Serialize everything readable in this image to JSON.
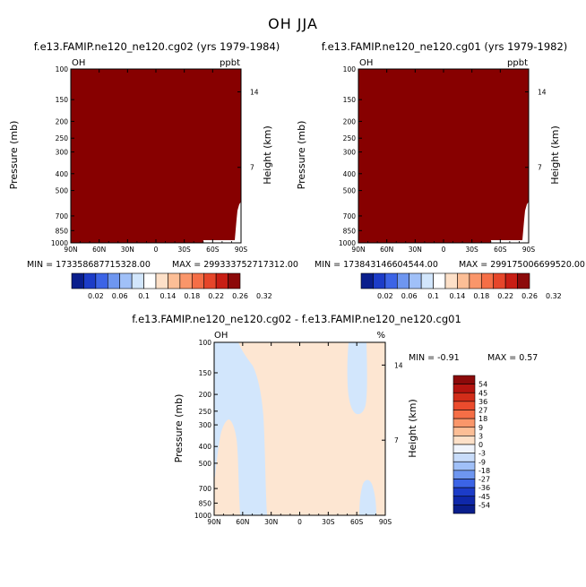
{
  "figure_title": "OH JJA",
  "chart_data": [
    {
      "type": "heatmap",
      "title": "f.e13.FAMIP.ne120_ne120.cg02 (yrs 1979-1984)",
      "variable": "OH",
      "units": "ppbt",
      "ylabel": "Pressure (mb)",
      "y2label": "Height (km)",
      "x_ticks": [
        "90N",
        "60N",
        "30N",
        "0",
        "30S",
        "60S",
        "90S"
      ],
      "y_ticks": [
        "100",
        "150",
        "200",
        "250",
        "300",
        "400",
        "500",
        "700",
        "850",
        "1000"
      ],
      "y2_ticks": [
        "14",
        "7"
      ],
      "ylim": [
        1000,
        100
      ],
      "min_label": "MIN = 173358687715328.00",
      "max_label": "MAX = 299333752717312.00",
      "colorbar_labels": [
        "0.02",
        "0.06",
        "0.1",
        "0.14",
        "0.18",
        "0.22",
        "0.26",
        "0.32"
      ],
      "colorbar_colors": [
        "#0a1e8c",
        "#1c3cc8",
        "#3c64e6",
        "#6e96f0",
        "#a0c0f8",
        "#d2e6fc",
        "#ffffff",
        "#fde0c8",
        "#fcbe96",
        "#fa966a",
        "#f56e46",
        "#e6462a",
        "#c81e14",
        "#8c0a0a"
      ],
      "fill_color": "#870000",
      "note": ""
    },
    {
      "type": "heatmap",
      "title": "f.e13.FAMIP.ne120_ne120.cg01 (yrs 1979-1982)",
      "variable": "OH",
      "units": "ppbt",
      "ylabel": "Pressure (mb)",
      "y2label": "Height (km)",
      "x_ticks": [
        "90N",
        "60N",
        "30N",
        "0",
        "30S",
        "60S",
        "90S"
      ],
      "y_ticks": [
        "100",
        "150",
        "200",
        "250",
        "300",
        "400",
        "500",
        "700",
        "850",
        "1000"
      ],
      "y2_ticks": [
        "14",
        "7"
      ],
      "ylim": [
        1000,
        100
      ],
      "min_label": "MIN = 173843146604544.00",
      "max_label": "MAX = 299175006699520.00",
      "colorbar_labels": [
        "0.02",
        "0.06",
        "0.1",
        "0.14",
        "0.18",
        "0.22",
        "0.26",
        "0.32"
      ],
      "colorbar_colors": [
        "#0a1e8c",
        "#1c3cc8",
        "#3c64e6",
        "#6e96f0",
        "#a0c0f8",
        "#d2e6fc",
        "#ffffff",
        "#fde0c8",
        "#fcbe96",
        "#fa966a",
        "#f56e46",
        "#e6462a",
        "#c81e14",
        "#8c0a0a"
      ],
      "fill_color": "#870000"
    },
    {
      "type": "heatmap",
      "title": "f.e13.FAMIP.ne120_ne120.cg02 - f.e13.FAMIP.ne120_ne120.cg01",
      "variable": "OH",
      "units": "%",
      "ylabel": "Pressure (mb)",
      "y2label": "Height (km)",
      "x_ticks": [
        "90N",
        "60N",
        "30N",
        "0",
        "30S",
        "60S",
        "90S"
      ],
      "y_ticks": [
        "100",
        "150",
        "200",
        "250",
        "300",
        "400",
        "500",
        "700",
        "850",
        "1000"
      ],
      "y2_ticks": [
        "14",
        "7"
      ],
      "ylim": [
        1000,
        100
      ],
      "min_label": "MIN =   -0.91",
      "max_label": "MAX =    0.57",
      "colorbar_labels": [
        "54",
        "45",
        "36",
        "27",
        "18",
        "9",
        "3",
        "0",
        "-3",
        "-9",
        "-18",
        "-27",
        "-36",
        "-45",
        "-54"
      ],
      "colorbar_colors": [
        "#8c0a0a",
        "#b4140f",
        "#d22d19",
        "#eb4b2d",
        "#f56e46",
        "#fa966a",
        "#fcbe96",
        "#fde0c8",
        "#f0f4fc",
        "#c8dcfa",
        "#a0c0f8",
        "#6e96f0",
        "#3c64e6",
        "#1c3cc8",
        "#0f28aa",
        "#0a1e8c"
      ],
      "regions": {
        "positive_color": "#fde6d2",
        "negative_color": "#d2e6fc"
      }
    }
  ]
}
